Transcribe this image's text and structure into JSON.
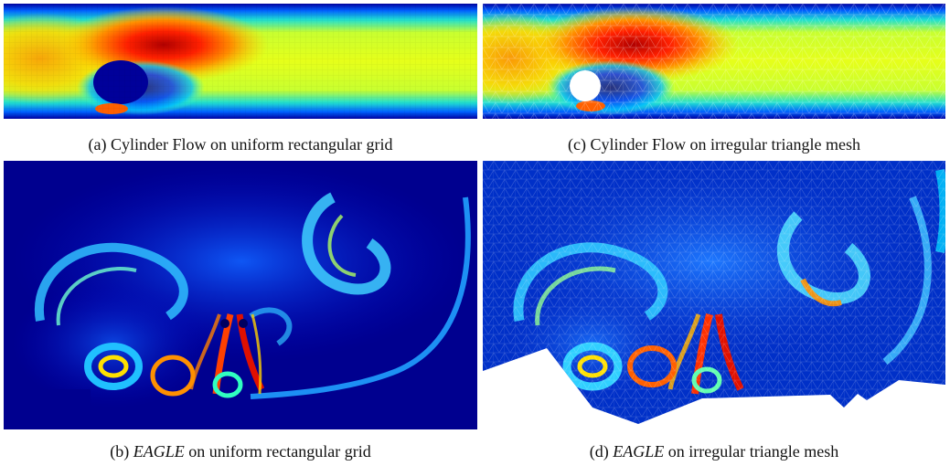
{
  "figure": {
    "panels": [
      {
        "id": "a",
        "caption_prefix": "(a) Cylinder Flow on uniform rectangular grid",
        "caption_italic": "",
        "caption_suffix": "",
        "mesh": "uniform rectangular grid",
        "dataset": "Cylinder Flow"
      },
      {
        "id": "c",
        "caption_prefix": "(c) Cylinder Flow on irregular triangle mesh",
        "caption_italic": "",
        "caption_suffix": "",
        "mesh": "irregular triangle mesh",
        "dataset": "Cylinder Flow"
      },
      {
        "id": "b",
        "caption_prefix": "(b) ",
        "caption_italic": "EAGLE",
        "caption_suffix": " on uniform rectangular grid",
        "mesh": "uniform rectangular grid",
        "dataset": "EAGLE"
      },
      {
        "id": "d",
        "caption_prefix": "(d) ",
        "caption_italic": "EAGLE",
        "caption_suffix": " on irregular triangle mesh",
        "mesh": "irregular triangle mesh",
        "dataset": "EAGLE"
      }
    ],
    "colormap": "jet",
    "colors": {
      "deep_blue": "#00008f",
      "blue": "#0000ff",
      "cyan": "#00ffff",
      "yellow": "#e6ff1a",
      "orange": "#ff8000",
      "red": "#d01000",
      "dark_red": "#800000"
    }
  }
}
